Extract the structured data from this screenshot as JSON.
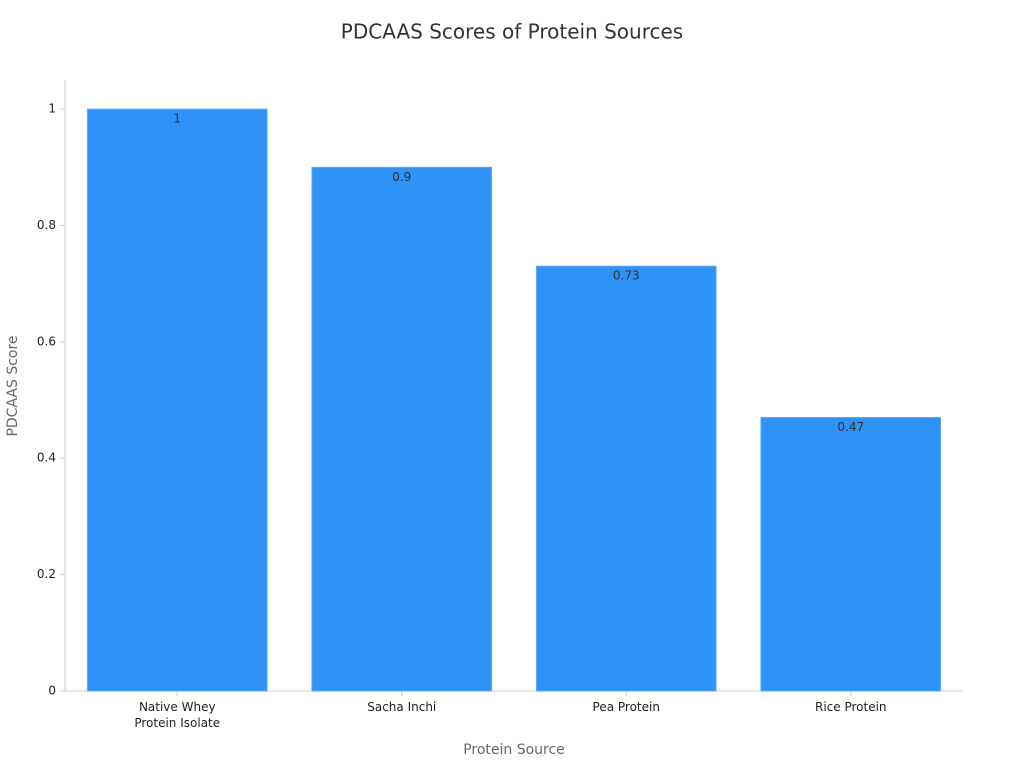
{
  "chart_data": {
    "type": "bar",
    "title": "PDCAAS Scores of Protein Sources",
    "x_label": "Protein Source",
    "y_label": "PDCAAS Score",
    "categories": [
      "Native Whey Protein Isolate",
      "Sacha Inchi",
      "Pea Protein",
      "Rice Protein"
    ],
    "values": [
      1,
      0.9,
      0.73,
      0.47
    ],
    "color": "#2f92f7",
    "ylim": [
      0,
      1.05
    ],
    "yticks": [
      0,
      0.2,
      0.4,
      0.6,
      0.8,
      1
    ],
    "grid": false
  }
}
